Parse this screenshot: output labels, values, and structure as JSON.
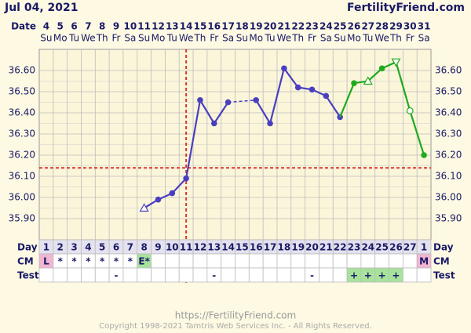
{
  "chart_data": {
    "type": "line",
    "title": "Jul 04, 2021",
    "brand": "FertilityFriend.com",
    "date_label": "Date",
    "categories": [
      "4",
      "5",
      "6",
      "7",
      "8",
      "9",
      "10",
      "11",
      "12",
      "13",
      "14",
      "15",
      "16",
      "17",
      "18",
      "19",
      "20",
      "21",
      "22",
      "23",
      "24",
      "25",
      "26",
      "27",
      "28",
      "29",
      "30",
      "31"
    ],
    "weekdays": [
      "Su",
      "Mo",
      "Tu",
      "We",
      "Th",
      "Fr",
      "Sa",
      "Su",
      "Mo",
      "Tu",
      "We",
      "Th",
      "Fr",
      "Sa",
      "Su",
      "Mo",
      "Tu",
      "We",
      "Th",
      "Fr",
      "Sa",
      "Su",
      "Mo",
      "Tu",
      "We",
      "Th",
      "Fr",
      "Sa"
    ],
    "ylim": [
      35.8,
      36.7
    ],
    "yticks": [
      {
        "value": 35.9,
        "label": "35.90"
      },
      {
        "value": 36.0,
        "label": "36.00"
      },
      {
        "value": 36.1,
        "label": "36.10"
      },
      {
        "value": 36.2,
        "label": "36.20"
      },
      {
        "value": 36.3,
        "label": "36.30"
      },
      {
        "value": 36.4,
        "label": "36.40"
      },
      {
        "value": 36.5,
        "label": "36.50"
      },
      {
        "value": 36.6,
        "label": "36.60"
      }
    ],
    "grid": true,
    "coverline": 36.14,
    "coverline_color": "#dd3333",
    "ovulation_index": 10,
    "series": [
      {
        "color": "#4a3fc0",
        "values": [
          null,
          null,
          null,
          null,
          null,
          null,
          null,
          35.95,
          35.99,
          36.02,
          36.09,
          36.46,
          36.35,
          36.45,
          null,
          36.46,
          36.35,
          36.61,
          36.52,
          36.51,
          36.48,
          36.38,
          null,
          null,
          null,
          null,
          null,
          null
        ],
        "markers": {
          "7": "triangle-up-open"
        }
      },
      {
        "color": "#1faa1f",
        "joined": true,
        "values": [
          null,
          null,
          null,
          null,
          null,
          null,
          null,
          null,
          null,
          null,
          null,
          null,
          null,
          null,
          null,
          null,
          null,
          null,
          null,
          null,
          null,
          null,
          36.54,
          36.55,
          36.61,
          36.64,
          36.41,
          36.2
        ],
        "markers": {
          "23": "triangle-up-open",
          "25": "triangle-down-open",
          "26": "circle-open"
        }
      }
    ],
    "rows": [
      {
        "label": "Day",
        "values": [
          1,
          2,
          3,
          4,
          5,
          6,
          7,
          8,
          9,
          10,
          11,
          12,
          13,
          14,
          15,
          16,
          17,
          18,
          19,
          20,
          21,
          22,
          23,
          24,
          25,
          26,
          27,
          1
        ],
        "background": "#e4e2ef"
      },
      {
        "label": "CM",
        "values": [
          "L",
          "*",
          "*",
          "*",
          "*",
          "*",
          "*",
          "E*",
          null,
          null,
          null,
          null,
          null,
          null,
          null,
          null,
          null,
          null,
          null,
          null,
          null,
          null,
          null,
          null,
          null,
          null,
          null,
          "M"
        ]
      },
      {
        "label": "Test",
        "values": [
          null,
          null,
          null,
          null,
          null,
          "-",
          null,
          null,
          null,
          null,
          null,
          null,
          "-",
          null,
          null,
          null,
          null,
          null,
          null,
          "-",
          null,
          null,
          "+",
          "+",
          "+",
          "+",
          null,
          null
        ]
      }
    ],
    "cell_colors": {
      "L": "#f2b6d2",
      "M": "#f2b6d2",
      "E*": "#a8e39c",
      "+": "#a8e39c"
    }
  },
  "footer": {
    "url": "https://FertilityFriend.com",
    "copyright": "Copyright 1998-2021 Tamtris Web Services Inc. - All Rights Reserved."
  }
}
